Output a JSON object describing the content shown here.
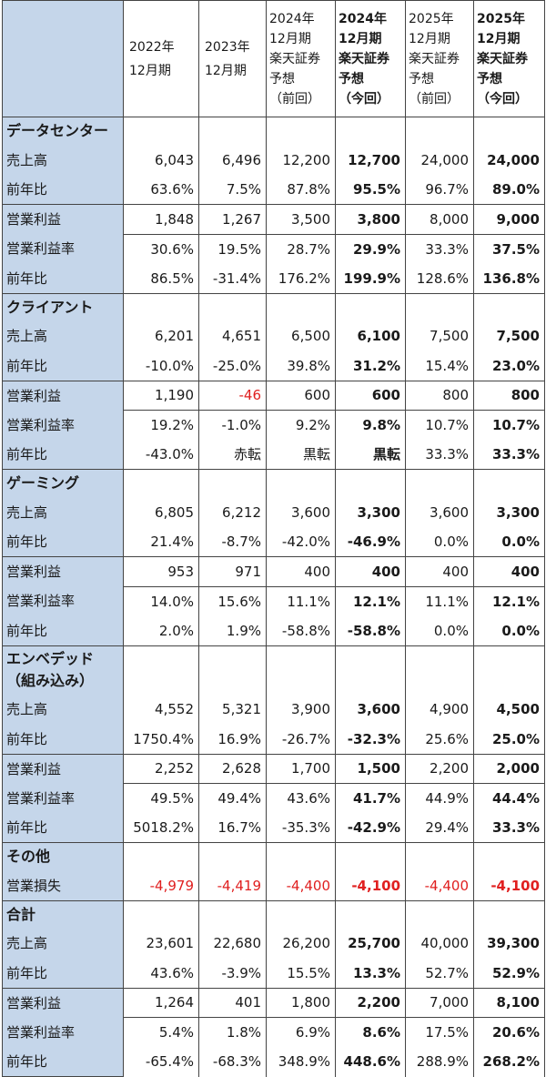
{
  "header": {
    "columns": [
      {
        "lines": [
          "",
          "2022年",
          "12月期",
          ""
        ],
        "bold": false
      },
      {
        "lines": [
          "",
          "2023年",
          "12月期",
          ""
        ],
        "bold": false
      },
      {
        "lines": [
          "2024年",
          "12月期",
          "楽天証券",
          "予想",
          "（前回）"
        ],
        "bold": false
      },
      {
        "lines": [
          "2024年",
          "12月期",
          "楽天証券",
          "予想",
          "（今回）"
        ],
        "bold": true
      },
      {
        "lines": [
          "2025年",
          "12月期",
          "楽天証券",
          "予想",
          "（前回）"
        ],
        "bold": false
      },
      {
        "lines": [
          "2025年",
          "12月期",
          "楽天証券",
          "予想",
          "（今回）"
        ],
        "bold": true
      }
    ]
  },
  "sections": [
    {
      "title": "データセンター",
      "rows": [
        {
          "label": "売上高",
          "values": [
            "6,043",
            "6,496",
            "12,200",
            "12,700",
            "24,000",
            "24,000"
          ],
          "neg": []
        },
        {
          "label": "前年比",
          "values": [
            "63.6%",
            "7.5%",
            "87.8%",
            "95.5%",
            "96.7%",
            "89.0%"
          ],
          "neg": []
        },
        {
          "label": "営業利益",
          "values": [
            "1,848",
            "1,267",
            "3,500",
            "3,800",
            "8,000",
            "9,000"
          ],
          "neg": []
        },
        {
          "label": "営業利益率",
          "values": [
            "30.6%",
            "19.5%",
            "28.7%",
            "29.9%",
            "33.3%",
            "37.5%"
          ],
          "neg": []
        },
        {
          "label": "前年比",
          "values": [
            "86.5%",
            "-31.4%",
            "176.2%",
            "199.9%",
            "128.6%",
            "136.8%"
          ],
          "neg": []
        }
      ]
    },
    {
      "title": "クライアント",
      "rows": [
        {
          "label": "売上高",
          "values": [
            "6,201",
            "4,651",
            "6,500",
            "6,100",
            "7,500",
            "7,500"
          ],
          "neg": []
        },
        {
          "label": "前年比",
          "values": [
            "-10.0%",
            "-25.0%",
            "39.8%",
            "31.2%",
            "15.4%",
            "23.0%"
          ],
          "neg": []
        },
        {
          "label": "営業利益",
          "values": [
            "1,190",
            "-46",
            "600",
            "600",
            "800",
            "800"
          ],
          "neg": [
            1
          ]
        },
        {
          "label": "営業利益率",
          "values": [
            "19.2%",
            "-1.0%",
            "9.2%",
            "9.8%",
            "10.7%",
            "10.7%"
          ],
          "neg": []
        },
        {
          "label": "前年比",
          "values": [
            "-43.0%",
            "赤転",
            "黒転",
            "黒転",
            "33.3%",
            "33.3%"
          ],
          "neg": []
        }
      ]
    },
    {
      "title": "ゲーミング",
      "rows": [
        {
          "label": "売上高",
          "values": [
            "6,805",
            "6,212",
            "3,600",
            "3,300",
            "3,600",
            "3,300"
          ],
          "neg": []
        },
        {
          "label": "前年比",
          "values": [
            "21.4%",
            "-8.7%",
            "-42.0%",
            "-46.9%",
            "0.0%",
            "0.0%"
          ],
          "neg": []
        },
        {
          "label": "営業利益",
          "values": [
            "953",
            "971",
            "400",
            "400",
            "400",
            "400"
          ],
          "neg": []
        },
        {
          "label": "営業利益率",
          "values": [
            "14.0%",
            "15.6%",
            "11.1%",
            "12.1%",
            "11.1%",
            "12.1%"
          ],
          "neg": []
        },
        {
          "label": "前年比",
          "values": [
            "2.0%",
            "1.9%",
            "-58.8%",
            "-58.8%",
            "0.0%",
            "0.0%"
          ],
          "neg": []
        }
      ]
    },
    {
      "title": "エンベデッド",
      "title2": "（組み込み）",
      "rows": [
        {
          "label": "売上高",
          "values": [
            "4,552",
            "5,321",
            "3,900",
            "3,600",
            "4,900",
            "4,500"
          ],
          "neg": []
        },
        {
          "label": "前年比",
          "values": [
            "1750.4%",
            "16.9%",
            "-26.7%",
            "-32.3%",
            "25.6%",
            "25.0%"
          ],
          "neg": []
        },
        {
          "label": "営業利益",
          "values": [
            "2,252",
            "2,628",
            "1,700",
            "1,500",
            "2,200",
            "2,000"
          ],
          "neg": []
        },
        {
          "label": "営業利益率",
          "values": [
            "49.5%",
            "49.4%",
            "43.6%",
            "41.7%",
            "44.9%",
            "44.4%"
          ],
          "neg": []
        },
        {
          "label": "前年比",
          "values": [
            "5018.2%",
            "16.7%",
            "-35.3%",
            "-42.9%",
            "29.4%",
            "33.3%"
          ],
          "neg": []
        }
      ]
    },
    {
      "title": "その他",
      "rows": [
        {
          "label": "営業損失",
          "values": [
            "-4,979",
            "-4,419",
            "-4,400",
            "-4,100",
            "-4,400",
            "-4,100"
          ],
          "neg": [
            0,
            1,
            2,
            3,
            4,
            5
          ]
        }
      ]
    },
    {
      "title": "合計",
      "rows": [
        {
          "label": "売上高",
          "values": [
            "23,601",
            "22,680",
            "26,200",
            "25,700",
            "40,000",
            "39,300"
          ],
          "neg": []
        },
        {
          "label": "前年比",
          "values": [
            "43.6%",
            "-3.9%",
            "15.5%",
            "13.3%",
            "52.7%",
            "52.9%"
          ],
          "neg": []
        },
        {
          "label": "営業利益",
          "values": [
            "1,264",
            "401",
            "1,800",
            "2,200",
            "7,000",
            "8,100"
          ],
          "neg": []
        },
        {
          "label": "営業利益率",
          "values": [
            "5.4%",
            "1.8%",
            "6.9%",
            "8.6%",
            "17.5%",
            "20.6%"
          ],
          "neg": []
        },
        {
          "label": "前年比",
          "values": [
            "-65.4%",
            "-68.3%",
            "348.9%",
            "448.6%",
            "288.9%",
            "268.2%"
          ],
          "neg": []
        }
      ]
    }
  ]
}
